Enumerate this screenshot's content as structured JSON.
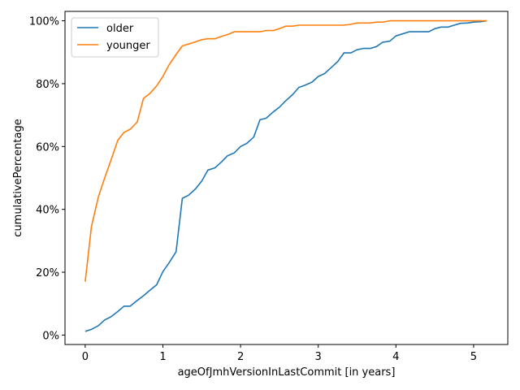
{
  "chart_data": {
    "type": "line",
    "xlabel": "ageOfJmhVersionInLastCommit [in years]",
    "ylabel": "cumulativePercentage",
    "xlim": [
      -0.26,
      5.44
    ],
    "ylim": [
      -3,
      103
    ],
    "x_ticks": [
      0,
      1,
      2,
      3,
      4,
      5
    ],
    "x_tick_labels": [
      "0",
      "1",
      "2",
      "3",
      "4",
      "5"
    ],
    "y_ticks": [
      0,
      20,
      40,
      60,
      80,
      100
    ],
    "y_tick_labels": [
      "0%",
      "20%",
      "40%",
      "60%",
      "80%",
      "100%"
    ],
    "grid": false,
    "legend_position": "top-left",
    "series": [
      {
        "name": "older",
        "color": "#1f77b4",
        "points": [
          [
            0.0,
            1.2
          ],
          [
            0.08,
            1.8
          ],
          [
            0.17,
            3.0
          ],
          [
            0.25,
            4.8
          ],
          [
            0.33,
            5.8
          ],
          [
            0.42,
            7.5
          ],
          [
            0.5,
            9.2
          ],
          [
            0.58,
            9.2
          ],
          [
            0.67,
            11.0
          ],
          [
            0.75,
            12.5
          ],
          [
            0.83,
            14.2
          ],
          [
            0.92,
            16.0
          ],
          [
            1.0,
            20.2
          ],
          [
            1.08,
            23.0
          ],
          [
            1.17,
            26.5
          ],
          [
            1.25,
            43.5
          ],
          [
            1.33,
            44.5
          ],
          [
            1.42,
            46.5
          ],
          [
            1.5,
            49.0
          ],
          [
            1.58,
            52.5
          ],
          [
            1.67,
            53.2
          ],
          [
            1.75,
            55.0
          ],
          [
            1.83,
            57.0
          ],
          [
            1.92,
            58.0
          ],
          [
            2.0,
            60.0
          ],
          [
            2.08,
            61.0
          ],
          [
            2.17,
            63.0
          ],
          [
            2.25,
            68.5
          ],
          [
            2.33,
            69.0
          ],
          [
            2.42,
            71.0
          ],
          [
            2.5,
            72.5
          ],
          [
            2.58,
            74.5
          ],
          [
            2.67,
            76.5
          ],
          [
            2.75,
            78.8
          ],
          [
            2.83,
            79.5
          ],
          [
            2.92,
            80.5
          ],
          [
            3.0,
            82.3
          ],
          [
            3.08,
            83.2
          ],
          [
            3.17,
            85.2
          ],
          [
            3.25,
            87.0
          ],
          [
            3.33,
            89.8
          ],
          [
            3.42,
            89.8
          ],
          [
            3.5,
            90.8
          ],
          [
            3.58,
            91.2
          ],
          [
            3.67,
            91.2
          ],
          [
            3.75,
            91.8
          ],
          [
            3.83,
            93.2
          ],
          [
            3.92,
            93.5
          ],
          [
            4.0,
            95.2
          ],
          [
            4.08,
            95.8
          ],
          [
            4.17,
            96.5
          ],
          [
            4.25,
            96.5
          ],
          [
            4.33,
            96.5
          ],
          [
            4.42,
            96.5
          ],
          [
            4.5,
            97.5
          ],
          [
            4.58,
            98.0
          ],
          [
            4.67,
            98.0
          ],
          [
            4.75,
            98.6
          ],
          [
            4.83,
            99.2
          ],
          [
            4.92,
            99.3
          ],
          [
            5.0,
            99.6
          ],
          [
            5.08,
            99.7
          ],
          [
            5.17,
            100.0
          ]
        ]
      },
      {
        "name": "younger",
        "color": "#ff7f0e",
        "points": [
          [
            0.0,
            17.0
          ],
          [
            0.08,
            34.5
          ],
          [
            0.17,
            44.0
          ],
          [
            0.25,
            50.0
          ],
          [
            0.33,
            55.5
          ],
          [
            0.42,
            62.0
          ],
          [
            0.5,
            64.5
          ],
          [
            0.58,
            65.5
          ],
          [
            0.67,
            67.8
          ],
          [
            0.75,
            75.3
          ],
          [
            0.83,
            76.8
          ],
          [
            0.92,
            79.3
          ],
          [
            1.0,
            82.3
          ],
          [
            1.08,
            86.0
          ],
          [
            1.17,
            89.3
          ],
          [
            1.25,
            92.0
          ],
          [
            1.33,
            92.6
          ],
          [
            1.42,
            93.3
          ],
          [
            1.5,
            94.0
          ],
          [
            1.58,
            94.3
          ],
          [
            1.67,
            94.3
          ],
          [
            1.75,
            95.0
          ],
          [
            1.83,
            95.6
          ],
          [
            1.92,
            96.5
          ],
          [
            2.0,
            96.5
          ],
          [
            2.08,
            96.5
          ],
          [
            2.17,
            96.5
          ],
          [
            2.25,
            96.5
          ],
          [
            2.33,
            96.9
          ],
          [
            2.42,
            96.9
          ],
          [
            2.5,
            97.5
          ],
          [
            2.58,
            98.3
          ],
          [
            2.67,
            98.3
          ],
          [
            2.75,
            98.6
          ],
          [
            2.83,
            98.6
          ],
          [
            2.92,
            98.6
          ],
          [
            3.0,
            98.6
          ],
          [
            3.08,
            98.6
          ],
          [
            3.17,
            98.6
          ],
          [
            3.25,
            98.6
          ],
          [
            3.33,
            98.6
          ],
          [
            3.42,
            98.9
          ],
          [
            3.5,
            99.3
          ],
          [
            3.58,
            99.3
          ],
          [
            3.67,
            99.3
          ],
          [
            3.75,
            99.6
          ],
          [
            3.83,
            99.6
          ],
          [
            3.92,
            100.0
          ],
          [
            4.0,
            100.0
          ],
          [
            4.17,
            100.0
          ],
          [
            4.42,
            100.0
          ],
          [
            4.67,
            100.0
          ],
          [
            4.92,
            100.0
          ],
          [
            5.17,
            100.0
          ]
        ]
      }
    ]
  }
}
